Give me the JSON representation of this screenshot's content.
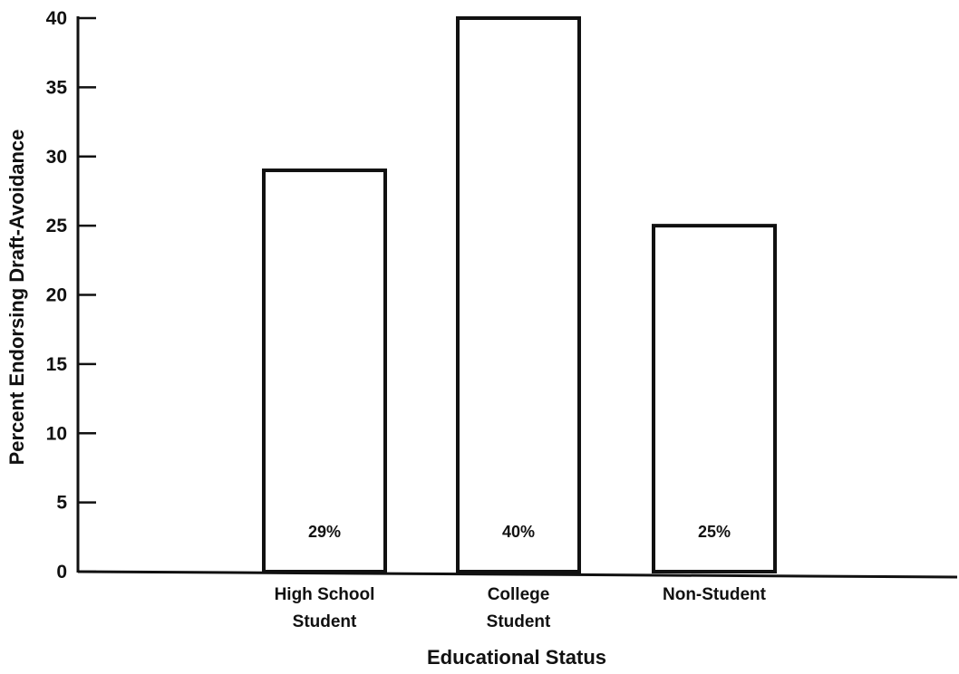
{
  "chart_data": {
    "type": "bar",
    "categories": [
      [
        "High School",
        "Student"
      ],
      [
        "College",
        "Student"
      ],
      [
        "Non-Student"
      ]
    ],
    "values": [
      29,
      40,
      25
    ],
    "data_labels": [
      "29%",
      "40%",
      "25%"
    ],
    "xlabel": "Educational Status",
    "ylabel": "Percent Endorsing Draft-Avoidance",
    "ylim": [
      0,
      40
    ],
    "yticks": [
      0,
      5,
      10,
      15,
      20,
      25,
      30,
      35,
      40
    ],
    "ytick_labels": [
      "0",
      "5",
      "10",
      "15",
      "20",
      "25",
      "30",
      "35",
      "40"
    ],
    "grid": false,
    "legend": "none",
    "colors": {
      "bar_fill": "#ffffff",
      "bar_stroke": "#111111",
      "axis": "#111111"
    }
  }
}
